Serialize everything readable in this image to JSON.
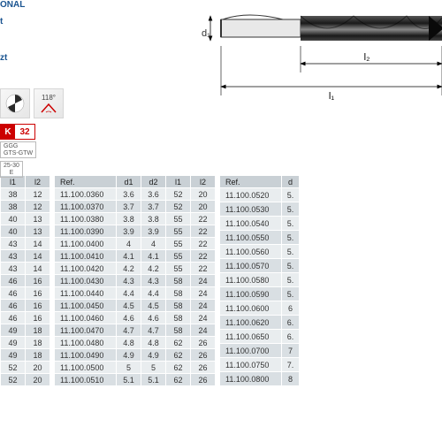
{
  "left_text": {
    "line1": "ONAL",
    "line2": "t",
    "line3": "zt"
  },
  "badges": {
    "angle": "118°"
  },
  "k_badge": {
    "k": "K",
    "num": "32"
  },
  "ggg": {
    "l1": "GGG",
    "l2": "GTS-GTW"
  },
  "e_box": {
    "l1": "25-30",
    "l2": "E"
  },
  "diagram": {
    "d1": "d₁",
    "l2": "l₂",
    "l1": "l₁"
  },
  "table1": {
    "headers": [
      "l1",
      "l2"
    ],
    "rows": [
      [
        "38",
        "12"
      ],
      [
        "38",
        "12"
      ],
      [
        "40",
        "13"
      ],
      [
        "40",
        "13"
      ],
      [
        "43",
        "14"
      ],
      [
        "43",
        "14"
      ],
      [
        "43",
        "14"
      ],
      [
        "46",
        "16"
      ],
      [
        "46",
        "16"
      ],
      [
        "46",
        "16"
      ],
      [
        "46",
        "16"
      ],
      [
        "49",
        "18"
      ],
      [
        "49",
        "18"
      ],
      [
        "49",
        "18"
      ],
      [
        "52",
        "20"
      ],
      [
        "52",
        "20"
      ]
    ]
  },
  "table2": {
    "headers": [
      "Ref.",
      "d1",
      "d2",
      "l1",
      "l2"
    ],
    "rows": [
      [
        "11.100.0360",
        "3.6",
        "3.6",
        "52",
        "20"
      ],
      [
        "11.100.0370",
        "3.7",
        "3.7",
        "52",
        "20"
      ],
      [
        "11.100.0380",
        "3.8",
        "3.8",
        "55",
        "22"
      ],
      [
        "11.100.0390",
        "3.9",
        "3.9",
        "55",
        "22"
      ],
      [
        "11.100.0400",
        "4",
        "4",
        "55",
        "22"
      ],
      [
        "11.100.0410",
        "4.1",
        "4.1",
        "55",
        "22"
      ],
      [
        "11.100.0420",
        "4.2",
        "4.2",
        "55",
        "22"
      ],
      [
        "11.100.0430",
        "4.3",
        "4.3",
        "58",
        "24"
      ],
      [
        "11.100.0440",
        "4.4",
        "4.4",
        "58",
        "24"
      ],
      [
        "11.100.0450",
        "4.5",
        "4.5",
        "58",
        "24"
      ],
      [
        "11.100.0460",
        "4.6",
        "4.6",
        "58",
        "24"
      ],
      [
        "11.100.0470",
        "4.7",
        "4.7",
        "58",
        "24"
      ],
      [
        "11.100.0480",
        "4.8",
        "4.8",
        "62",
        "26"
      ],
      [
        "11.100.0490",
        "4.9",
        "4.9",
        "62",
        "26"
      ],
      [
        "11.100.0500",
        "5",
        "5",
        "62",
        "26"
      ],
      [
        "11.100.0510",
        "5.1",
        "5.1",
        "62",
        "26"
      ]
    ]
  },
  "table3": {
    "headers": [
      "Ref.",
      "d"
    ],
    "rows": [
      [
        "11.100.0520",
        "5."
      ],
      [
        "11.100.0530",
        "5."
      ],
      [
        "11.100.0540",
        "5."
      ],
      [
        "11.100.0550",
        "5."
      ],
      [
        "11.100.0560",
        "5."
      ],
      [
        "11.100.0570",
        "5."
      ],
      [
        "11.100.0580",
        "5."
      ],
      [
        "11.100.0590",
        "5."
      ],
      [
        "11.100.0600",
        "6"
      ],
      [
        "11.100.0620",
        "6."
      ],
      [
        "11.100.0650",
        "6."
      ],
      [
        "11.100.0700",
        "7"
      ],
      [
        "11.100.0750",
        "7."
      ],
      [
        "11.100.0800",
        "8"
      ]
    ]
  },
  "colors": {
    "header_bg": "#c9d0d5",
    "row_odd": "#e9edef",
    "row_even": "#d9dfe3",
    "accent_red": "#cc0000",
    "link_blue": "#1a5490"
  }
}
